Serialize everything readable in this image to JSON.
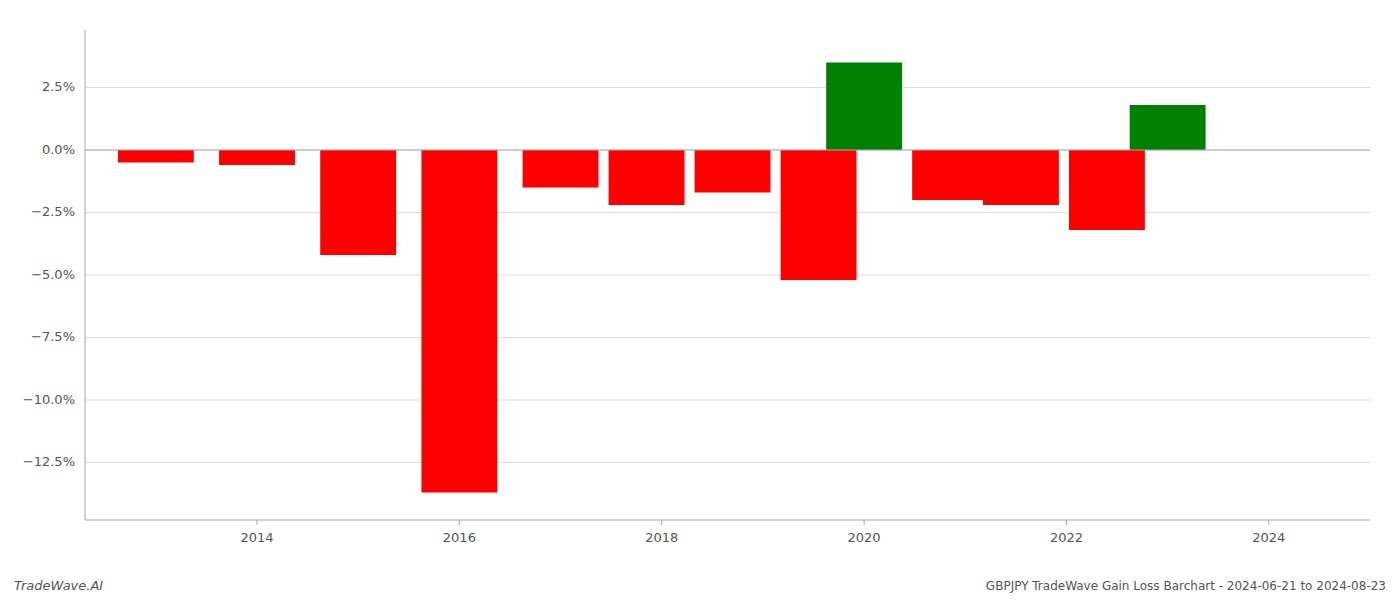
{
  "chart_data": {
    "type": "bar",
    "x": [
      2013,
      2014,
      2015,
      2016,
      2017,
      2017.85,
      2018.7,
      2019.55,
      2020,
      2020.85,
      2021.55,
      2022.4,
      2023
    ],
    "values": [
      -0.5,
      -0.6,
      -4.2,
      -13.7,
      -1.5,
      -2.2,
      -1.7,
      -5.2,
      3.5,
      -2.0,
      -2.2,
      -3.2,
      1.8
    ],
    "colors": [
      "#ff0000",
      "#ff0000",
      "#ff0000",
      "#ff0000",
      "#ff0000",
      "#ff0000",
      "#ff0000",
      "#ff0000",
      "#008000",
      "#ff0000",
      "#ff0000",
      "#ff0000",
      "#008000"
    ],
    "xlim": [
      2012.3,
      2025.0
    ],
    "xticks": [
      2014,
      2016,
      2018,
      2020,
      2022,
      2024
    ],
    "ylim": [
      -14.8,
      4.8
    ],
    "yticks": [
      {
        "value": 2.5,
        "label": "2.5%"
      },
      {
        "value": 0.0,
        "label": "0.0%"
      },
      {
        "value": -2.5,
        "label": "−2.5%"
      },
      {
        "value": -5.0,
        "label": "−5.0%"
      },
      {
        "value": -7.5,
        "label": "−7.5%"
      },
      {
        "value": -10.0,
        "label": "−10.0%"
      },
      {
        "value": -12.5,
        "label": "−12.5%"
      }
    ],
    "grid": true,
    "annotations": [
      "TradeWave.AI",
      "GBPJPY TradeWave Gain Loss Barchart - 2024-06-21 to 2024-08-23"
    ]
  }
}
